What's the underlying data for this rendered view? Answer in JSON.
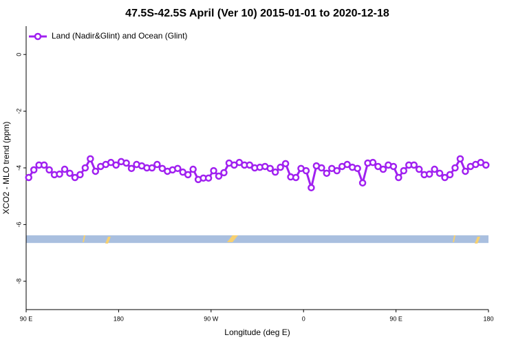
{
  "chart_data": {
    "type": "line",
    "title": "47.5S-42.5S April (Ver 10)   2015-01-01 to 2020-12-18",
    "x_label": "Longitude (deg E)",
    "y_label": "XCO2 - MLO trend (ppm)",
    "x": [
      92.5,
      97.5,
      102.5,
      107.5,
      112.5,
      117.5,
      122.5,
      127.5,
      132.5,
      137.5,
      142.5,
      147.5,
      152.5,
      157.5,
      162.5,
      167.5,
      172.5,
      177.5,
      182.5,
      187.5,
      192.5,
      197.5,
      202.5,
      207.5,
      212.5,
      217.5,
      222.5,
      227.5,
      232.5,
      237.5,
      242.5,
      247.5,
      252.5,
      257.5,
      262.5,
      267.5,
      272.5,
      277.5,
      282.5,
      287.5,
      292.5,
      297.5,
      302.5,
      307.5,
      312.5,
      317.5,
      322.5,
      327.5,
      332.5,
      337.5,
      342.5,
      347.5,
      352.5,
      357.5,
      362.5,
      367.5,
      372.5,
      377.5,
      382.5,
      387.5,
      392.5,
      397.5,
      402.5,
      407.5,
      412.5,
      417.5,
      422.5,
      427.5,
      432.5,
      437.5,
      442.5,
      447.5,
      452.5,
      457.5,
      462.5,
      467.5,
      472.5,
      477.5,
      482.5,
      487.5,
      492.5,
      497.5,
      502.5,
      507.5,
      512.5,
      517.5,
      522.5,
      527.5,
      532.5,
      537.5
    ],
    "series": [
      {
        "name": "Land (Nadir&Glint) and Ocean (Glint)",
        "color": "#a020f0",
        "values": [
          -4.34,
          -4.07,
          -3.9,
          -3.9,
          -4.07,
          -4.24,
          -4.22,
          -4.05,
          -4.19,
          -4.34,
          -4.24,
          -4.0,
          -3.68,
          -4.12,
          -3.95,
          -3.88,
          -3.81,
          -3.9,
          -3.78,
          -3.83,
          -4.02,
          -3.88,
          -3.93,
          -4.0,
          -4.0,
          -3.88,
          -4.02,
          -4.12,
          -4.07,
          -4.02,
          -4.15,
          -4.24,
          -4.05,
          -4.41,
          -4.36,
          -4.36,
          -4.1,
          -4.29,
          -4.17,
          -3.83,
          -3.9,
          -3.81,
          -3.9,
          -3.9,
          -4.0,
          -3.98,
          -3.95,
          -4.02,
          -4.15,
          -3.98,
          -3.85,
          -4.32,
          -4.34,
          -4.02,
          -4.1,
          -4.7,
          -3.93,
          -4.0,
          -4.19,
          -4.02,
          -4.1,
          -3.95,
          -3.88,
          -3.98,
          -4.02,
          -4.53,
          -3.83,
          -3.81,
          -3.95,
          -4.05,
          -3.9,
          -3.95,
          -4.34,
          -4.1,
          -3.9,
          -3.9,
          -4.05,
          -4.24,
          -4.22,
          -4.05,
          -4.19,
          -4.34,
          -4.24,
          -4.0,
          -3.68,
          -4.12,
          -3.95,
          -3.88,
          -3.81,
          -3.9
        ]
      }
    ],
    "xlim": [
      90,
      540
    ],
    "xticks": [
      {
        "value": 90,
        "label": "90 E"
      },
      180,
      {
        "value": 270,
        "label": "90 W"
      },
      {
        "value": 360,
        "label": "0"
      },
      {
        "value": 450,
        "label": "90 E"
      },
      {
        "value": 540,
        "label": "180"
      }
    ],
    "ylim": [
      -9,
      1
    ],
    "yticks": [
      0,
      -2,
      -4,
      -6,
      -8
    ],
    "band_ylim": [
      -6.65,
      -6.38
    ],
    "band_color": "#a9bfdf",
    "legend": "top-left"
  }
}
